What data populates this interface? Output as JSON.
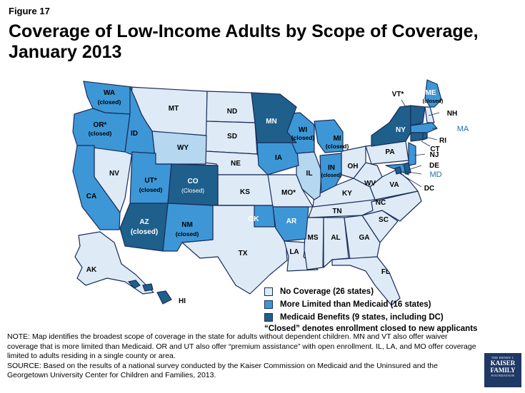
{
  "figure_label": "Figure 17",
  "title": "Coverage of Low-Income Adults by Scope of Coverage, January 2013",
  "colors": {
    "no_coverage": "#deebf7",
    "more_limited": "#3d97d6",
    "medicaid": "#1f5f8b",
    "outline": "#1a2d5a"
  },
  "legend": {
    "items": [
      {
        "label": "No Coverage (26 states)",
        "color": "#deebf7"
      },
      {
        "label": "More Limited than Medicaid (16 states)",
        "color": "#3d97d6"
      },
      {
        "label": "Medicaid Benefits (9 states, including DC)",
        "color": "#1f5f8b"
      }
    ],
    "note": "“Closed” denotes enrollment closed to new applicants"
  },
  "state_labels": {
    "WA": "WA",
    "OR": "OR*",
    "CA": "CA",
    "ID": "ID",
    "NV": "NV",
    "MT": "MT",
    "WY": "WY",
    "UT": "UT*",
    "CO": "CO",
    "AZ": "AZ",
    "NM": "NM",
    "ND": "ND",
    "SD": "SD",
    "NE": "NE",
    "KS": "KS",
    "OK": "OK",
    "TX": "TX",
    "MN": "MN",
    "IA": "IA",
    "MO": "MO*",
    "AR": "AR",
    "LA": "LA",
    "WI": "WI",
    "IL": "IL",
    "MI": "MI",
    "IN": "IN",
    "OH": "OH",
    "KY": "KY",
    "TN": "TN",
    "MS": "MS",
    "AL": "AL",
    "GA": "GA",
    "FL": "FL",
    "SC": "SC",
    "NC": "NC",
    "VA": "VA",
    "WV": "WV",
    "PA": "PA",
    "NY": "NY",
    "VT": "VT*",
    "NH": "NH",
    "ME": "ME",
    "MA": "MA",
    "RI": "RI",
    "CT": "CT",
    "NJ": "NJ",
    "DE": "DE",
    "MD": "MD",
    "DC": "DC",
    "AK": "AK",
    "HI": "HI"
  },
  "closed_text": "(closed)",
  "closed_text_co": "(Closed)",
  "note": "NOTE: Map identifies the broadest scope of coverage in the state for adults without dependent children.  MN and VT also offer waiver coverage that is more limited than Medicaid. OR and UT also offer “premium assistance” with open enrollment. IL, LA, and MO offer coverage limited to adults residing in a single county or area.",
  "source": "SOURCE: Based on the results of a national survey conducted by the Kaiser Commission on Medicaid and the Uninsured and the Georgetown University Center for Children and Families, 2013.",
  "logo": {
    "line1": "THE HENRY J.",
    "line2": "KAISER",
    "line3": "FAMILY",
    "line4": "FOUNDATION"
  }
}
